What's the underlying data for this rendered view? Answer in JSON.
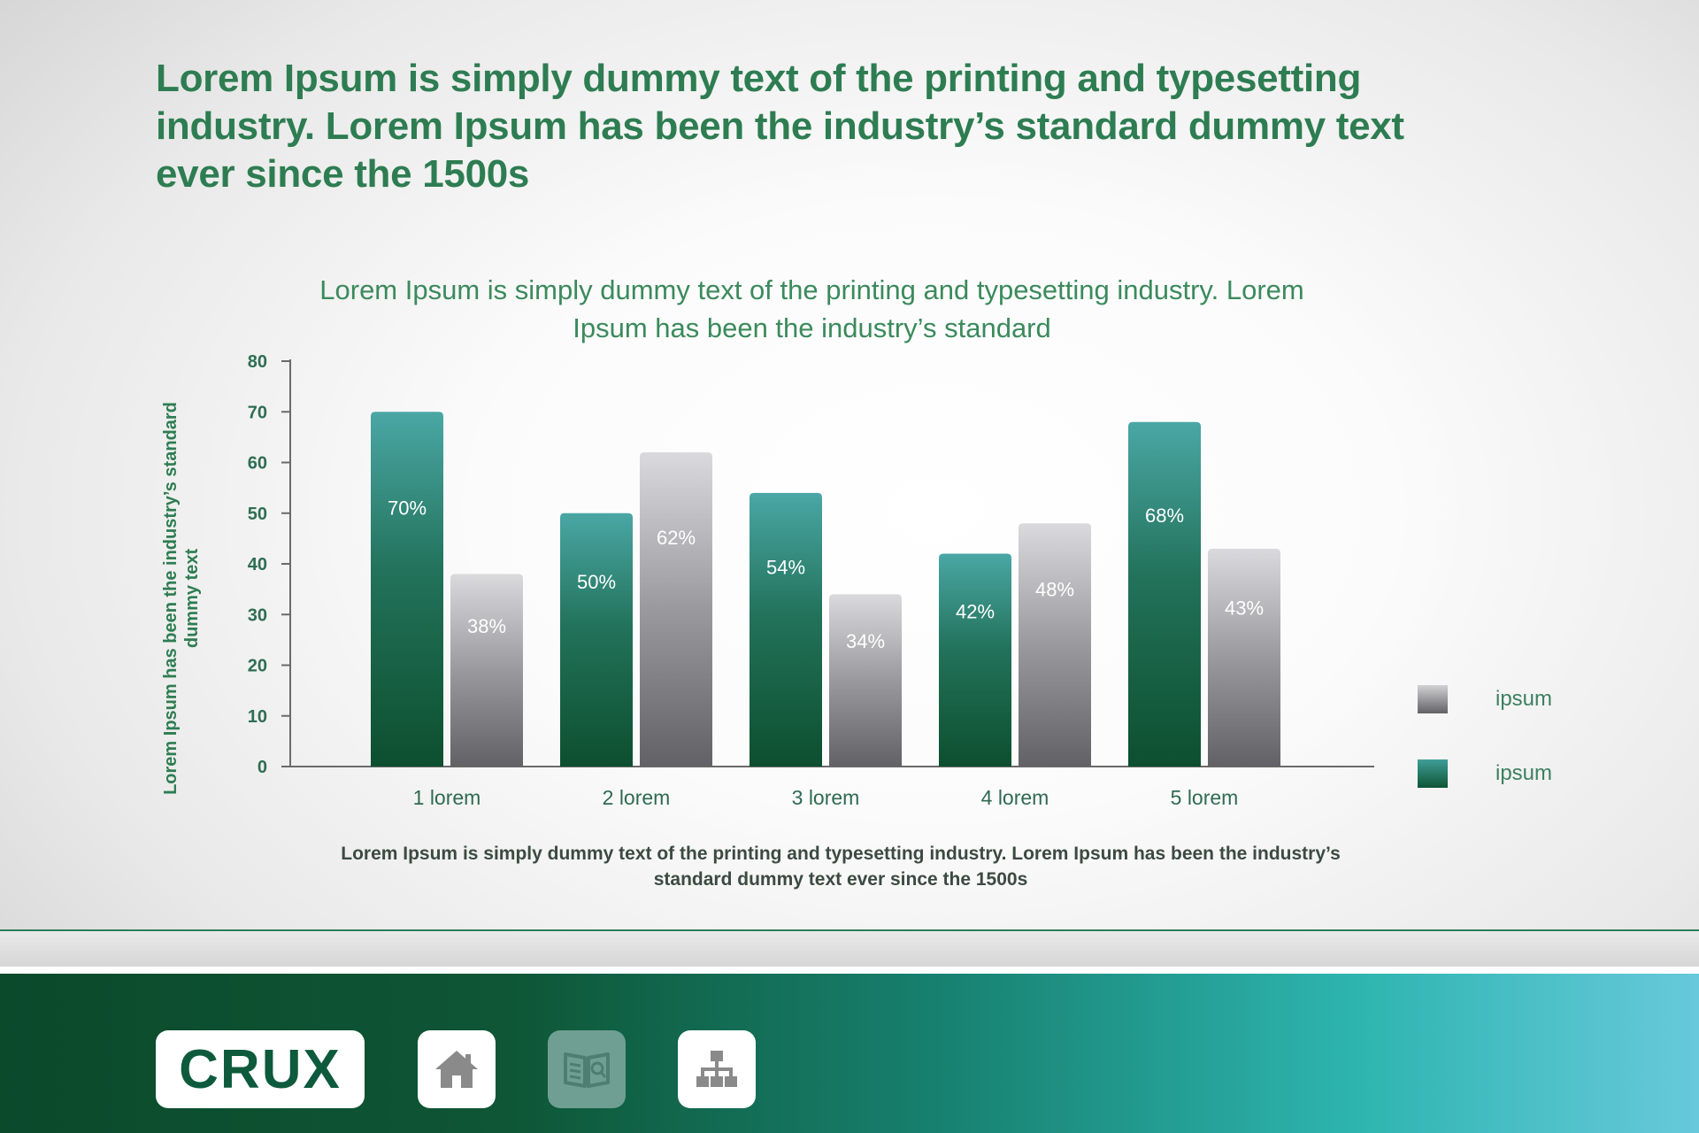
{
  "headline": "Lorem Ipsum is simply dummy text of the printing and typesetting industry. Lorem Ipsum has been the industry’s standard dummy text ever since the 1500s",
  "chart_data": {
    "type": "bar",
    "title": "Lorem Ipsum is simply dummy text of the printing and typesetting industry. Lorem Ipsum has been the industry’s standard",
    "xlabel": "Lorem Ipsum is simply dummy text of the printing and typesetting industry. Lorem Ipsum has been the industry’s standard dummy text ever since the 1500s",
    "ylabel": "Lorem Ipsum has been the industry’s standard dummy text",
    "categories": [
      "1 lorem",
      "2 lorem",
      "3 lorem",
      "4 lorem",
      "5 lorem"
    ],
    "series": [
      {
        "name": "ipsum",
        "values": [
          70,
          50,
          54,
          42,
          68
        ],
        "labels": [
          "70%",
          "50%",
          "54%",
          "42%",
          "68%"
        ],
        "color": "#1f6b4e"
      },
      {
        "name": "ipsum",
        "values": [
          38,
          62,
          34,
          48,
          43
        ],
        "labels": [
          "38%",
          "62%",
          "34%",
          "48%",
          "43%"
        ],
        "color": "#8a8a8e"
      }
    ],
    "ylim": [
      0,
      80
    ],
    "yticks": [
      "0",
      "10",
      "20",
      "30",
      "40",
      "50",
      "60",
      "70",
      "80"
    ],
    "grid": false,
    "legend_position": "right"
  },
  "legend": [
    {
      "label": "ipsum",
      "color": "gray"
    },
    {
      "label": "ipsum",
      "color": "green"
    }
  ],
  "footer": {
    "logo": "CRUX",
    "nav": [
      {
        "icon": "home-icon",
        "active": true
      },
      {
        "icon": "book-search-icon",
        "active": false
      },
      {
        "icon": "sitemap-icon",
        "active": true
      }
    ]
  }
}
